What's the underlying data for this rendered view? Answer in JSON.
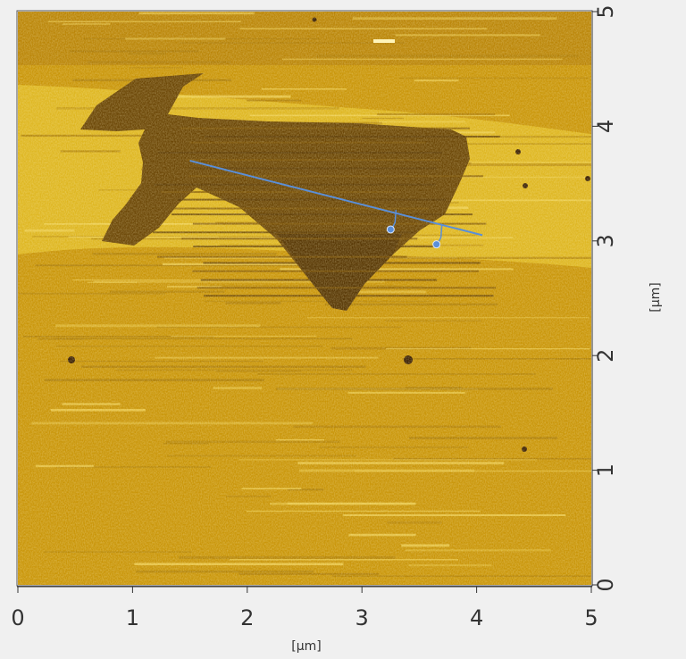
{
  "chart_data": {
    "type": "heatmap",
    "title": "",
    "xlabel": "[µm]",
    "ylabel": "[µm]",
    "xlim": [
      0,
      5
    ],
    "ylim": [
      0,
      5
    ],
    "x_ticks": [
      "0",
      "1",
      "2",
      "3",
      "4",
      "5"
    ],
    "y_ticks": [
      "0",
      "1",
      "2",
      "3",
      "4",
      "5"
    ],
    "colormap": [
      "#3c2104",
      "#6b4606",
      "#a16f08",
      "#c99509",
      "#e4c12a",
      "#fff4b8"
    ],
    "background_level_color": "#c99509",
    "flake_color": "#6b4606",
    "line_profile": {
      "color": "#5b8fd8",
      "start": [
        1.5,
        3.7
      ],
      "end": [
        4.05,
        3.05
      ],
      "markers": [
        {
          "x": 3.25,
          "y": 3.1
        },
        {
          "x": 3.65,
          "y": 2.97
        }
      ]
    }
  }
}
